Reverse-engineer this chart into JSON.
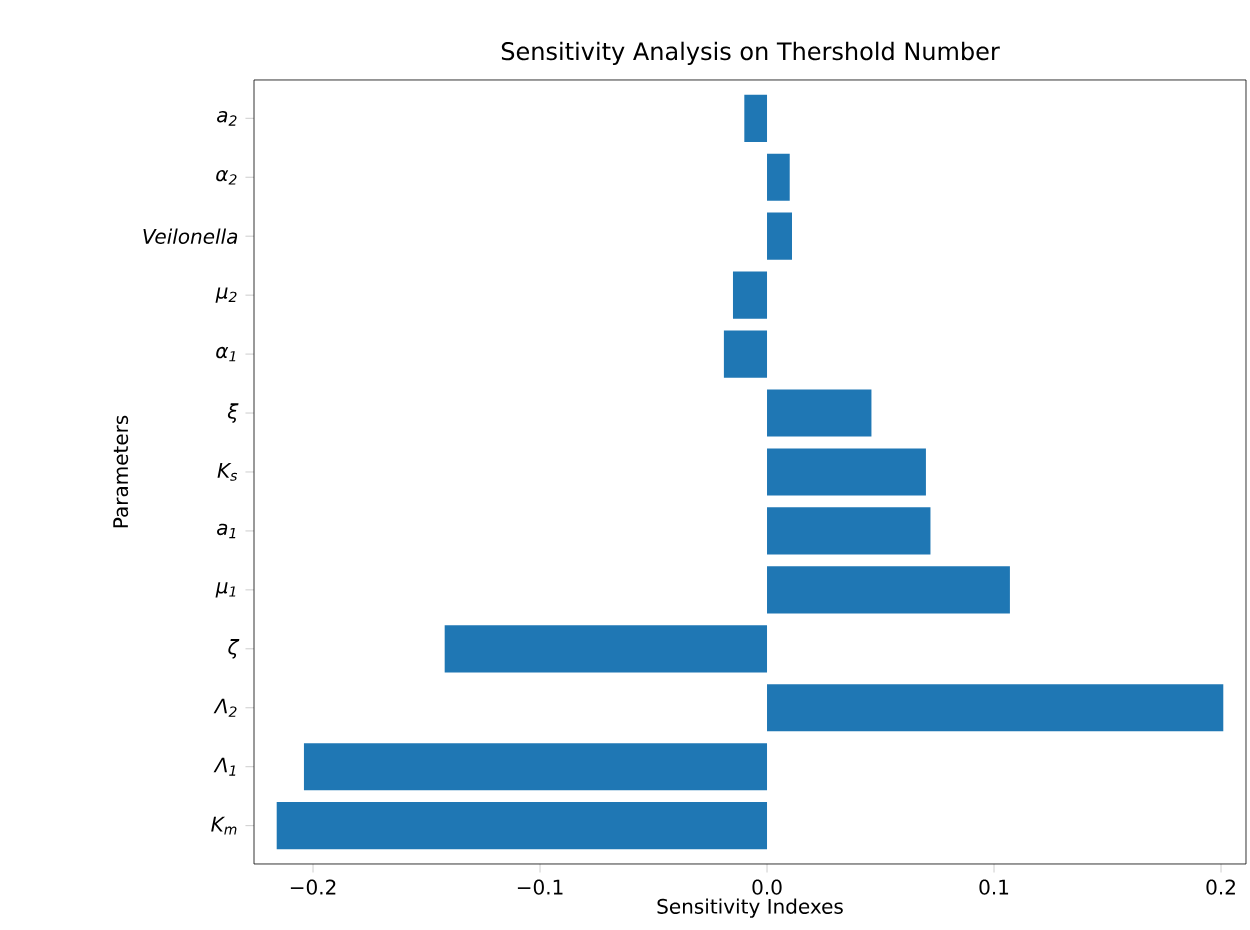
{
  "chart_data": {
    "type": "bar",
    "orientation": "horizontal",
    "title": "Sensitivity Analysis on Thershold Number",
    "xlabel": "Sensitivity Indexes",
    "ylabel": "Parameters",
    "categories": [
      "a$_{2}$",
      "α$_{2}$",
      "Veilonella",
      "μ$_{2}$",
      "α$_{1}$",
      "ξ",
      "K$_{s}$",
      "a$_{1}$",
      "μ$_{1}$",
      "ζ",
      "Λ$_{2}$",
      "Λ$_{1}$",
      "K$_{m}$"
    ],
    "values": [
      -0.01,
      0.01,
      0.011,
      -0.015,
      -0.019,
      0.046,
      0.07,
      0.072,
      0.107,
      -0.142,
      0.201,
      -0.204,
      -0.216
    ],
    "color": "#1f77b4",
    "xlim": [
      -0.226,
      0.211
    ],
    "xticks": [
      {
        "value": -0.2,
        "label": "−0.2"
      },
      {
        "value": -0.1,
        "label": "−0.1"
      },
      {
        "value": 0,
        "label": "0.0"
      },
      {
        "value": 0.1,
        "label": "0.1"
      },
      {
        "value": 0.2,
        "label": "0.2"
      }
    ]
  }
}
